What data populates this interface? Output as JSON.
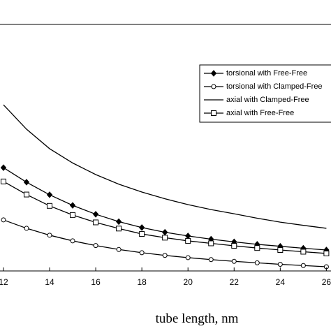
{
  "chart_data": {
    "type": "line",
    "x_label": "tube length, nm",
    "x": [
      12,
      13,
      14,
      15,
      16,
      17,
      18,
      19,
      20,
      21,
      22,
      23,
      24,
      25,
      26
    ],
    "xlim": [
      11.85,
      26.2
    ],
    "xticks": [
      12,
      14,
      16,
      18,
      20,
      22,
      24,
      26
    ],
    "ylim": [
      0,
      10
    ],
    "legend": "upper right",
    "series": [
      {
        "name": "torsional with Free-Free",
        "color": "#000000",
        "marker": "diamond",
        "values": [
          4.19,
          3.6,
          3.09,
          2.66,
          2.3,
          2.0,
          1.76,
          1.57,
          1.42,
          1.29,
          1.18,
          1.08,
          1.0,
          0.92,
          0.85
        ]
      },
      {
        "name": "torsional with Clamped-Free",
        "color": "#000000",
        "marker": "circle",
        "values": [
          2.07,
          1.73,
          1.45,
          1.22,
          1.03,
          0.87,
          0.74,
          0.63,
          0.54,
          0.46,
          0.39,
          0.33,
          0.27,
          0.22,
          0.17
        ]
      },
      {
        "name": "axial with Clamped-Free",
        "color": "#000000",
        "marker": "none",
        "values": [
          6.74,
          5.75,
          4.96,
          4.38,
          3.91,
          3.52,
          3.2,
          2.93,
          2.69,
          2.49,
          2.32,
          2.14,
          1.98,
          1.85,
          1.73
        ]
      },
      {
        "name": "axial with Free-Free",
        "color": "#000000",
        "marker": "square",
        "values": [
          3.63,
          3.1,
          2.64,
          2.27,
          1.97,
          1.72,
          1.5,
          1.35,
          1.22,
          1.12,
          1.02,
          0.93,
          0.85,
          0.78,
          0.71
        ]
      }
    ]
  }
}
